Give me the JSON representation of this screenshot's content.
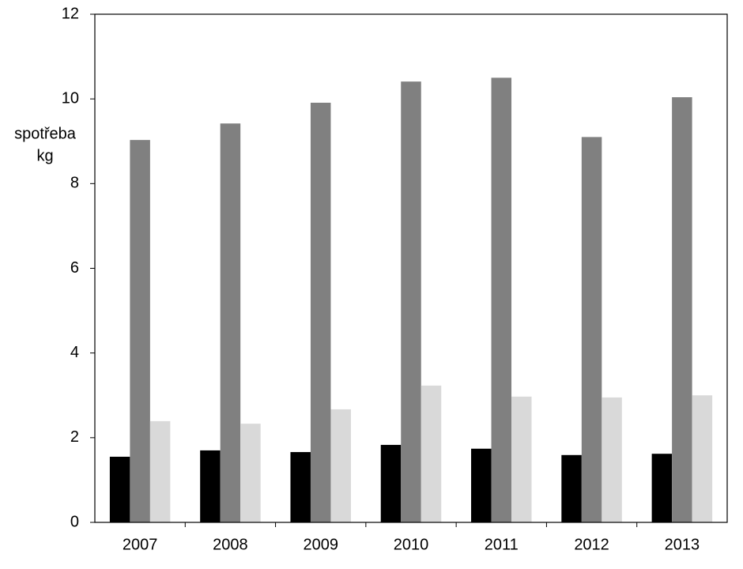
{
  "chart_data": {
    "type": "bar",
    "y_label": [
      "spotřeba",
      "kg"
    ],
    "categories": [
      "2007",
      "2008",
      "2009",
      "2010",
      "2011",
      "2012",
      "2013"
    ],
    "series": [
      {
        "color": "#000000",
        "values": [
          1.55,
          1.7,
          1.66,
          1.83,
          1.74,
          1.59,
          1.62
        ]
      },
      {
        "color": "#808080",
        "values": [
          9.03,
          9.42,
          9.91,
          10.41,
          10.5,
          9.1,
          10.04
        ]
      },
      {
        "color": "#d9d9d9",
        "values": [
          2.39,
          2.33,
          2.67,
          3.23,
          2.97,
          2.95,
          3.0
        ]
      }
    ],
    "ylim": [
      0,
      12
    ],
    "yticks": [
      0,
      2,
      4,
      6,
      8,
      10,
      12
    ],
    "grid": false
  }
}
